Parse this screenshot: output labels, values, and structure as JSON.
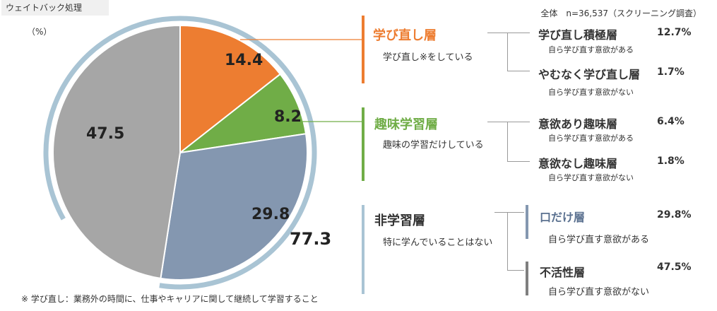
{
  "header": {
    "tag": "ウェイトバック処理",
    "unit": "（%）",
    "total": "全体　n=36,537（スクリーニング調査）"
  },
  "footnote": "※ 学び直し：業務外の時間に、仕事やキャリアに関して継続して学習すること",
  "chart_data": {
    "type": "pie",
    "slices": [
      {
        "label": "学び直し層",
        "value": 14.4,
        "display": "14.4",
        "color": "#ed7d31"
      },
      {
        "label": "趣味学習層",
        "value": 8.2,
        "display": "8.2",
        "color": "#70ad47"
      },
      {
        "label": "口だけ層",
        "value": 29.8,
        "display": "29.8",
        "color": "#8497b0"
      },
      {
        "label": "不活性層",
        "value": 47.5,
        "display": "47.5",
        "color": "#a6a6a6"
      }
    ],
    "bracket_total": "77.3",
    "bracket_color": "#a9c4d4"
  },
  "groups": [
    {
      "title": "学び直し層",
      "desc": "学び直し※をしている",
      "color": "#ed7d31",
      "subs": [
        {
          "title": "学び直し積極層",
          "desc": "自ら学び直す意欲がある",
          "pct": "12.7%"
        },
        {
          "title": "やむなく学び直し層",
          "desc": "自ら学び直す意欲がない",
          "pct": "1.7%"
        }
      ]
    },
    {
      "title": "趣味学習層",
      "desc": "趣味の学習だけしている",
      "color": "#70ad47",
      "subs": [
        {
          "title": "意欲あり趣味層",
          "desc": "自ら学び直す意欲がある",
          "pct": "6.4%"
        },
        {
          "title": "意欲なし趣味層",
          "desc": "自ら学び直す意欲がない",
          "pct": "1.8%"
        }
      ]
    },
    {
      "title": "非学習層",
      "desc": "特に学んでいることはない",
      "color": "#a9c4d4",
      "subs": [
        {
          "title": "口だけ層",
          "desc": "自ら学び直す意欲がある",
          "pct": "29.8%",
          "color": "#8497b0",
          "titleColor": "#5b7190"
        },
        {
          "title": "不活性層",
          "desc": "自ら学び直す意欲がない",
          "pct": "47.5%",
          "color": "#7f7f7f",
          "titleColor": "#333333"
        }
      ]
    }
  ]
}
